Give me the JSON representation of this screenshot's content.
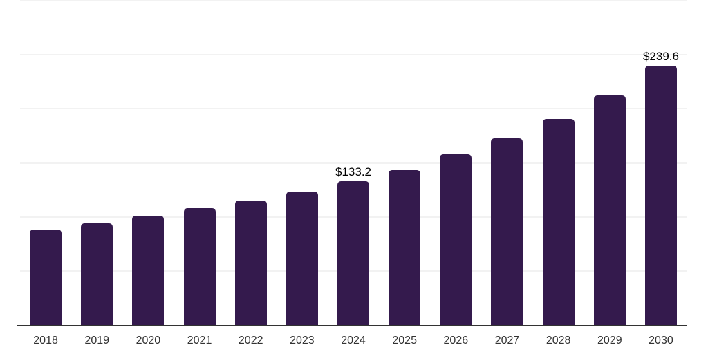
{
  "chart_data": {
    "type": "bar",
    "title": "",
    "subtitle": "",
    "xlabel": "",
    "ylabel": "",
    "categories": [
      "2018",
      "2019",
      "2020",
      "2021",
      "2022",
      "2023",
      "2024",
      "2025",
      "2026",
      "2027",
      "2028",
      "2029",
      "2030"
    ],
    "values": [
      88.1,
      93.8,
      100.8,
      108.3,
      114.9,
      123.2,
      133.2,
      143.6,
      157.7,
      172.4,
      190.9,
      212.6,
      239.6
    ],
    "data_labels": [
      "",
      "",
      "",
      "",
      "",
      "",
      "$133.2",
      "",
      "",
      "",
      "",
      "",
      "$239.6"
    ],
    "ylim": [
      0,
      300
    ],
    "grid_interval": 50,
    "grid": "horizontal",
    "legend": "none",
    "y_axis_labels_visible": false,
    "colors": {
      "bar": "#341A4D",
      "gridline": "#F2F2F2",
      "baseline": "#333333",
      "tick_label": "#333333",
      "data_label": "#000000",
      "background": "#FFFFFF"
    }
  }
}
